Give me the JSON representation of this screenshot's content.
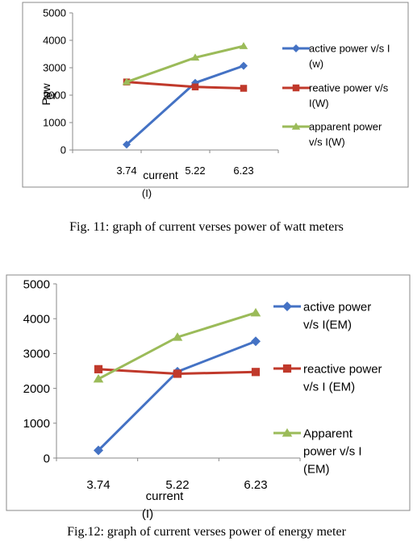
{
  "chart_data": [
    {
      "type": "line",
      "categories": [
        "3.74",
        "5.22",
        "6.23"
      ],
      "xlabel": "current",
      "xlabel_line2": "(I)",
      "ylabel": "Pow",
      "ylabel_overlap": "er",
      "ylim": [
        0,
        5000
      ],
      "yticks": [
        0,
        1000,
        2000,
        3000,
        4000,
        5000
      ],
      "grid": false,
      "legend_position": "right",
      "series": [
        {
          "name_lines": [
            "active power v/s I",
            "(w)"
          ],
          "values": [
            200,
            2450,
            3070
          ],
          "color": "#4472C4",
          "marker": "diamond"
        },
        {
          "name_lines": [
            "reative power v/s",
            "I(W)"
          ],
          "values": [
            2480,
            2300,
            2250
          ],
          "color": "#C0392B",
          "marker": "square"
        },
        {
          "name_lines": [
            "apparent power",
            "v/s I(W)"
          ],
          "values": [
            2480,
            3370,
            3790
          ],
          "color": "#9BBB59",
          "marker": "triangle"
        }
      ]
    },
    {
      "type": "line",
      "categories": [
        "3.74",
        "5.22",
        "6.23"
      ],
      "xlabel": "current",
      "xlabel_line2": "(I)",
      "ylim": [
        0,
        5000
      ],
      "yticks": [
        0,
        1000,
        2000,
        3000,
        4000,
        5000
      ],
      "grid": false,
      "legend_position": "right",
      "series": [
        {
          "name_lines": [
            "active power",
            "v/s I(EM)"
          ],
          "values": [
            220,
            2480,
            3350
          ],
          "color": "#4472C4",
          "marker": "diamond"
        },
        {
          "name_lines": [
            "reactive power",
            "v/s I (EM)"
          ],
          "values": [
            2550,
            2420,
            2470
          ],
          "color": "#C0392B",
          "marker": "square"
        },
        {
          "name_lines": [
            "Apparent",
            "power v/s I",
            "(EM)"
          ],
          "values": [
            2270,
            3470,
            4170
          ],
          "color": "#9BBB59",
          "marker": "triangle"
        }
      ]
    }
  ],
  "captions": {
    "fig11": "Fig. 11: graph of current verses power of watt meters",
    "fig12": "Fig.12: graph of current verses power of energy meter"
  }
}
